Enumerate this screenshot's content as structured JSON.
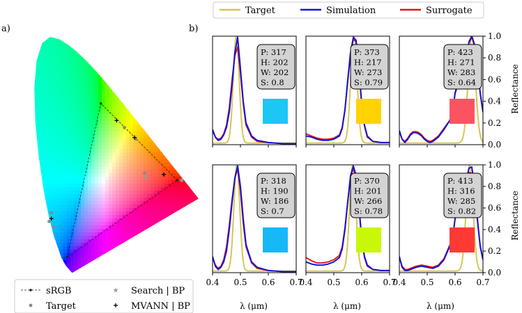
{
  "panel_labels": [
    "a)",
    "b)"
  ],
  "legend_top": {
    "entries": [
      {
        "name": "Target",
        "color": "#d4c753"
      },
      {
        "name": "Simulation",
        "color": "#1515d6"
      },
      {
        "name": "Surrogate",
        "color": "#e01515"
      }
    ]
  },
  "legend_cie": {
    "entries": [
      {
        "name": "sRGB",
        "marker": "line-dot"
      },
      {
        "name": "Target",
        "marker": "dot"
      },
      {
        "name": "Search | BP",
        "marker": "star"
      },
      {
        "name": "MVANN | BP",
        "marker": "plus"
      }
    ]
  },
  "axis": {
    "xlabel": "λ (μm)",
    "ylabel": "Reflectance",
    "xticks": [
      "0.4",
      "0.5",
      "0.6",
      "0.7"
    ],
    "yticks": [
      "0.0",
      "0.2",
      "0.4",
      "0.6",
      "0.8",
      "1.0"
    ]
  },
  "chart_data": {
    "type": "line",
    "xlim": [
      0.4,
      0.7
    ],
    "ylim": [
      0.0,
      1.0
    ],
    "panels": [
      {
        "id": "r1c1",
        "P": "P: 317",
        "H": "H: 202",
        "W": "W: 202",
        "S": "S: 0.8",
        "swatch": "#1cc6f5",
        "target_peak": 0.485,
        "target_width": 0.012,
        "sim": [
          [
            0.4,
            0.14
          ],
          [
            0.41,
            0.07
          ],
          [
            0.42,
            0.04
          ],
          [
            0.43,
            0.05
          ],
          [
            0.44,
            0.09
          ],
          [
            0.45,
            0.16
          ],
          [
            0.46,
            0.3
          ],
          [
            0.47,
            0.55
          ],
          [
            0.48,
            0.85
          ],
          [
            0.49,
            0.99
          ],
          [
            0.5,
            0.7
          ],
          [
            0.51,
            0.4
          ],
          [
            0.52,
            0.2
          ],
          [
            0.54,
            0.08
          ],
          [
            0.56,
            0.04
          ],
          [
            0.6,
            0.02
          ],
          [
            0.65,
            0.01
          ],
          [
            0.7,
            0.01
          ]
        ],
        "sur": [
          [
            0.4,
            0.13
          ],
          [
            0.41,
            0.07
          ],
          [
            0.42,
            0.05
          ],
          [
            0.43,
            0.06
          ],
          [
            0.44,
            0.1
          ],
          [
            0.45,
            0.18
          ],
          [
            0.46,
            0.34
          ],
          [
            0.47,
            0.6
          ],
          [
            0.48,
            0.82
          ],
          [
            0.49,
            0.9
          ],
          [
            0.5,
            0.66
          ],
          [
            0.51,
            0.38
          ],
          [
            0.52,
            0.18
          ],
          [
            0.54,
            0.07
          ],
          [
            0.56,
            0.03
          ],
          [
            0.6,
            0.02
          ],
          [
            0.65,
            0.01
          ],
          [
            0.7,
            0.01
          ]
        ]
      },
      {
        "id": "r1c2",
        "P": "P: 373",
        "H": "H: 217",
        "W": "W: 273",
        "S": "S: 0.79",
        "swatch": "#ffd300",
        "target_peak": 0.572,
        "target_width": 0.013,
        "sim": [
          [
            0.4,
            0.08
          ],
          [
            0.42,
            0.07
          ],
          [
            0.44,
            0.05
          ],
          [
            0.46,
            0.04
          ],
          [
            0.48,
            0.04
          ],
          [
            0.5,
            0.05
          ],
          [
            0.52,
            0.08
          ],
          [
            0.53,
            0.15
          ],
          [
            0.54,
            0.32
          ],
          [
            0.55,
            0.6
          ],
          [
            0.56,
            0.85
          ],
          [
            0.57,
            0.99
          ],
          [
            0.58,
            0.96
          ],
          [
            0.59,
            0.7
          ],
          [
            0.6,
            0.38
          ],
          [
            0.61,
            0.18
          ],
          [
            0.62,
            0.08
          ],
          [
            0.64,
            0.03
          ],
          [
            0.67,
            0.02
          ],
          [
            0.7,
            0.02
          ]
        ],
        "sur": [
          [
            0.4,
            0.1
          ],
          [
            0.42,
            0.08
          ],
          [
            0.44,
            0.06
          ],
          [
            0.46,
            0.05
          ],
          [
            0.48,
            0.05
          ],
          [
            0.5,
            0.06
          ],
          [
            0.52,
            0.09
          ],
          [
            0.53,
            0.16
          ],
          [
            0.54,
            0.33
          ],
          [
            0.55,
            0.58
          ],
          [
            0.56,
            0.84
          ],
          [
            0.57,
            0.97
          ],
          [
            0.58,
            0.95
          ],
          [
            0.59,
            0.68
          ],
          [
            0.6,
            0.36
          ],
          [
            0.61,
            0.17
          ],
          [
            0.62,
            0.07
          ],
          [
            0.64,
            0.03
          ],
          [
            0.67,
            0.02
          ],
          [
            0.7,
            0.02
          ]
        ]
      },
      {
        "id": "r1c3",
        "P": "P: 423",
        "H": "H: 271",
        "W": "W: 283",
        "S": "S: 0.64",
        "swatch": "#fc5363",
        "target_peak": 0.66,
        "target_width": 0.015,
        "sim": [
          [
            0.4,
            0.13
          ],
          [
            0.41,
            0.05
          ],
          [
            0.42,
            0.02
          ],
          [
            0.43,
            0.05
          ],
          [
            0.44,
            0.09
          ],
          [
            0.45,
            0.11
          ],
          [
            0.46,
            0.11
          ],
          [
            0.47,
            0.1
          ],
          [
            0.48,
            0.08
          ],
          [
            0.49,
            0.05
          ],
          [
            0.5,
            0.03
          ],
          [
            0.51,
            0.02
          ],
          [
            0.52,
            0.03
          ],
          [
            0.54,
            0.07
          ],
          [
            0.56,
            0.14
          ],
          [
            0.58,
            0.22
          ],
          [
            0.59,
            0.28
          ],
          [
            0.6,
            0.48
          ],
          [
            0.61,
            0.56
          ],
          [
            0.62,
            0.6
          ],
          [
            0.63,
            0.68
          ],
          [
            0.64,
            0.82
          ],
          [
            0.65,
            0.95
          ],
          [
            0.66,
            1.0
          ],
          [
            0.67,
            0.92
          ],
          [
            0.68,
            0.72
          ],
          [
            0.69,
            0.48
          ],
          [
            0.7,
            0.3
          ]
        ],
        "sur": [
          [
            0.4,
            0.12
          ],
          [
            0.41,
            0.05
          ],
          [
            0.42,
            0.03
          ],
          [
            0.43,
            0.06
          ],
          [
            0.44,
            0.1
          ],
          [
            0.45,
            0.12
          ],
          [
            0.46,
            0.12
          ],
          [
            0.47,
            0.11
          ],
          [
            0.48,
            0.09
          ],
          [
            0.49,
            0.06
          ],
          [
            0.5,
            0.04
          ],
          [
            0.51,
            0.03
          ],
          [
            0.52,
            0.04
          ],
          [
            0.54,
            0.08
          ],
          [
            0.56,
            0.15
          ],
          [
            0.58,
            0.22
          ],
          [
            0.59,
            0.28
          ],
          [
            0.6,
            0.47
          ],
          [
            0.61,
            0.55
          ],
          [
            0.62,
            0.6
          ],
          [
            0.63,
            0.68
          ],
          [
            0.64,
            0.81
          ],
          [
            0.65,
            0.94
          ],
          [
            0.66,
            0.99
          ],
          [
            0.67,
            0.91
          ],
          [
            0.68,
            0.71
          ],
          [
            0.69,
            0.47
          ],
          [
            0.7,
            0.3
          ]
        ]
      },
      {
        "id": "r2c1",
        "P": "P: 318",
        "H": "H: 190",
        "W": "W: 186",
        "S": "S: 0.7",
        "swatch": "#17b8f7",
        "target_peak": 0.487,
        "target_width": 0.012,
        "sim": [
          [
            0.4,
            0.15
          ],
          [
            0.41,
            0.06
          ],
          [
            0.42,
            0.03
          ],
          [
            0.43,
            0.05
          ],
          [
            0.44,
            0.1
          ],
          [
            0.45,
            0.2
          ],
          [
            0.46,
            0.4
          ],
          [
            0.47,
            0.65
          ],
          [
            0.48,
            0.88
          ],
          [
            0.49,
            0.99
          ],
          [
            0.5,
            0.8
          ],
          [
            0.51,
            0.5
          ],
          [
            0.52,
            0.26
          ],
          [
            0.54,
            0.1
          ],
          [
            0.56,
            0.05
          ],
          [
            0.6,
            0.02
          ],
          [
            0.65,
            0.01
          ],
          [
            0.7,
            0.01
          ]
        ],
        "sur": [
          [
            0.4,
            0.14
          ],
          [
            0.41,
            0.07
          ],
          [
            0.42,
            0.04
          ],
          [
            0.43,
            0.06
          ],
          [
            0.44,
            0.12
          ],
          [
            0.45,
            0.24
          ],
          [
            0.46,
            0.44
          ],
          [
            0.47,
            0.68
          ],
          [
            0.48,
            0.88
          ],
          [
            0.49,
            0.96
          ],
          [
            0.5,
            0.76
          ],
          [
            0.51,
            0.46
          ],
          [
            0.52,
            0.24
          ],
          [
            0.54,
            0.09
          ],
          [
            0.56,
            0.04
          ],
          [
            0.6,
            0.02
          ],
          [
            0.65,
            0.01
          ],
          [
            0.7,
            0.01
          ]
        ]
      },
      {
        "id": "r2c2",
        "P": "P: 370",
        "H": "H: 201",
        "W": "W: 266",
        "S": "S: 0.78",
        "swatch": "#c9f70a",
        "target_peak": 0.568,
        "target_width": 0.013,
        "sim": [
          [
            0.4,
            0.1
          ],
          [
            0.42,
            0.08
          ],
          [
            0.44,
            0.07
          ],
          [
            0.46,
            0.07
          ],
          [
            0.48,
            0.08
          ],
          [
            0.5,
            0.1
          ],
          [
            0.52,
            0.14
          ],
          [
            0.53,
            0.22
          ],
          [
            0.54,
            0.4
          ],
          [
            0.55,
            0.66
          ],
          [
            0.56,
            0.9
          ],
          [
            0.57,
            0.99
          ],
          [
            0.58,
            0.9
          ],
          [
            0.59,
            0.62
          ],
          [
            0.6,
            0.32
          ],
          [
            0.61,
            0.15
          ],
          [
            0.62,
            0.07
          ],
          [
            0.64,
            0.03
          ],
          [
            0.67,
            0.02
          ],
          [
            0.7,
            0.02
          ]
        ],
        "sur": [
          [
            0.4,
            0.14
          ],
          [
            0.42,
            0.11
          ],
          [
            0.44,
            0.09
          ],
          [
            0.46,
            0.09
          ],
          [
            0.48,
            0.1
          ],
          [
            0.5,
            0.12
          ],
          [
            0.52,
            0.16
          ],
          [
            0.53,
            0.24
          ],
          [
            0.54,
            0.42
          ],
          [
            0.55,
            0.66
          ],
          [
            0.56,
            0.88
          ],
          [
            0.57,
            0.97
          ],
          [
            0.58,
            0.88
          ],
          [
            0.59,
            0.6
          ],
          [
            0.6,
            0.3
          ],
          [
            0.61,
            0.14
          ],
          [
            0.62,
            0.06
          ],
          [
            0.64,
            0.03
          ],
          [
            0.67,
            0.02
          ],
          [
            0.7,
            0.02
          ]
        ]
      },
      {
        "id": "r2c3",
        "P": "P: 413",
        "H": "H: 316",
        "W": "W: 285",
        "S": "S: 0.82",
        "swatch": "#ff3a35",
        "target_peak": 0.652,
        "target_width": 0.014,
        "sim": [
          [
            0.4,
            0.15
          ],
          [
            0.41,
            0.05
          ],
          [
            0.42,
            0.02
          ],
          [
            0.43,
            0.02
          ],
          [
            0.44,
            0.03
          ],
          [
            0.46,
            0.05
          ],
          [
            0.48,
            0.06
          ],
          [
            0.5,
            0.05
          ],
          [
            0.52,
            0.04
          ],
          [
            0.54,
            0.06
          ],
          [
            0.56,
            0.12
          ],
          [
            0.58,
            0.24
          ],
          [
            0.59,
            0.3
          ],
          [
            0.6,
            0.5
          ],
          [
            0.61,
            0.56
          ],
          [
            0.62,
            0.62
          ],
          [
            0.63,
            0.72
          ],
          [
            0.64,
            0.86
          ],
          [
            0.65,
            0.97
          ],
          [
            0.66,
            0.98
          ],
          [
            0.67,
            0.8
          ],
          [
            0.68,
            0.5
          ],
          [
            0.69,
            0.25
          ],
          [
            0.7,
            0.12
          ]
        ],
        "sur": [
          [
            0.4,
            0.14
          ],
          [
            0.41,
            0.06
          ],
          [
            0.42,
            0.03
          ],
          [
            0.43,
            0.03
          ],
          [
            0.44,
            0.04
          ],
          [
            0.46,
            0.06
          ],
          [
            0.48,
            0.07
          ],
          [
            0.5,
            0.06
          ],
          [
            0.52,
            0.05
          ],
          [
            0.54,
            0.07
          ],
          [
            0.56,
            0.13
          ],
          [
            0.58,
            0.25
          ],
          [
            0.59,
            0.31
          ],
          [
            0.6,
            0.5
          ],
          [
            0.61,
            0.56
          ],
          [
            0.62,
            0.62
          ],
          [
            0.63,
            0.71
          ],
          [
            0.64,
            0.84
          ],
          [
            0.65,
            0.93
          ],
          [
            0.66,
            0.92
          ],
          [
            0.67,
            0.76
          ],
          [
            0.68,
            0.48
          ],
          [
            0.69,
            0.24
          ],
          [
            0.7,
            0.12
          ]
        ]
      }
    ],
    "cie": {
      "srgb_triangle": [
        [
          0.64,
          0.33
        ],
        [
          0.3,
          0.6
        ],
        [
          0.15,
          0.06
        ]
      ],
      "targets": [
        [
          0.405,
          0.515
        ],
        [
          0.455,
          0.475
        ],
        [
          0.495,
          0.355
        ],
        [
          0.66,
          0.33
        ],
        [
          0.08,
          0.215
        ],
        [
          0.07,
          0.185
        ],
        [
          0.09,
          0.165
        ]
      ],
      "search_bp": [
        [
          0.5,
          0.34
        ],
        [
          0.66,
          0.33
        ]
      ],
      "mvann_bp": [
        [
          0.37,
          0.54
        ],
        [
          0.45,
          0.48
        ],
        [
          0.58,
          0.35
        ],
        [
          0.08,
          0.195
        ]
      ]
    }
  }
}
